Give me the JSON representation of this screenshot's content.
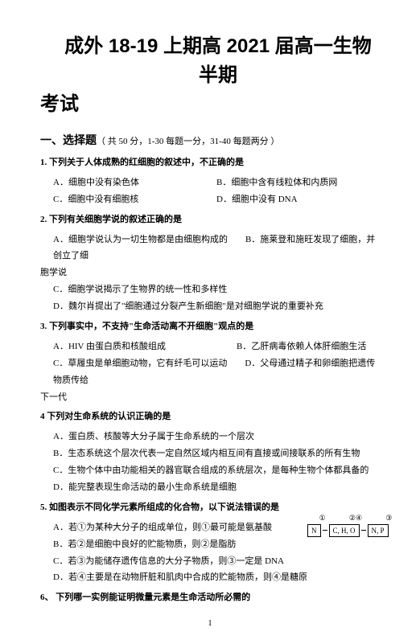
{
  "title": {
    "line1": "成外 18-19 上期高 2021 届高一生物半期",
    "line2": "考试"
  },
  "section": {
    "name": "一、选择题",
    "note": "（ 共 50 分，1-30 每题一分，31-40 每题两分 ）"
  },
  "questions": [
    {
      "num": "1.",
      "text": "下列关于人体成熟的红细胞的叙述中，不正确的是",
      "layout": "two-col",
      "options": [
        {
          "label": "A．",
          "text": "细胞中没有染色体"
        },
        {
          "label": "B．",
          "text": "细胞中含有线粒体和内质网"
        },
        {
          "label": "C．",
          "text": "细胞中没有细胞核"
        },
        {
          "label": "D．",
          "text": "细胞中没有 DNA"
        }
      ]
    },
    {
      "num": "2.",
      "text": "下列有关细胞学说的叙述正确的是",
      "layout": "one-col",
      "options": [
        {
          "label": "A．",
          "text": "细胞学说认为一切生物都是由细胞构成的　　B．施莱登和施旺发现了细胞，并创立了细"
        },
        {
          "label": "",
          "text": "胞学说",
          "outdent": true
        },
        {
          "label": "C．",
          "text": "细胞学说揭示了生物界的统一性和多样性"
        },
        {
          "label": "D．",
          "text": "魏尔肖提出了\"细胞通过分裂产生新细胞\"是对细胞学说的重要补充"
        }
      ]
    },
    {
      "num": "3.",
      "text": "下列事实中，不支持\"生命活动离不开细胞\"观点的是",
      "layout": "one-col",
      "options": [
        {
          "label": "A．",
          "text": "HIV 由蛋白质和核酸组成　　　　　　　　B．乙肝病毒依赖人体肝细胞生活"
        },
        {
          "label": "C．",
          "text": "草履虫是单细胞动物，它有纤毛可以运动　　D．父母通过精子和卵细胞把遗传物质传给"
        },
        {
          "label": "",
          "text": "下一代",
          "outdent": true
        }
      ]
    },
    {
      "num": "4",
      "text": "下列对生命系统的认识正确的是",
      "layout": "one-col",
      "options": [
        {
          "label": "A．",
          "text": "蛋白质、核酸等大分子属于生命系统的一个层次"
        },
        {
          "label": "B．",
          "text": "生态系统这个层次代表一定自然区域内相互间有直接或间接联系的所有生物"
        },
        {
          "label": "C．",
          "text": "生物个体中由功能相关的器官联合组成的系统层次，是每种生物个体都具备的"
        },
        {
          "label": "D．",
          "text": "能完整表现生命活动的最小生命系统是细胞"
        }
      ]
    },
    {
      "num": "5.",
      "text": "如图表示不同化学元素所组成的化合物，以下说法错误的是",
      "layout": "one-col",
      "has_diagram": true,
      "options": [
        {
          "label": "A．",
          "text": "若①为某种大分子的组成单位，则①最可能是氨基酸"
        },
        {
          "label": "B．",
          "text": "若②是细胞中良好的贮能物质，则②是脂肪"
        },
        {
          "label": "C．",
          "text": "若③为能储存遗传信息的大分子物质，则③一定是 DNA"
        },
        {
          "label": "D．",
          "text": "若④主要是在动物肝脏和肌肉中合成的贮能物质，则④是糖原"
        }
      ]
    },
    {
      "num": "6、",
      "text": "下列哪一实例能证明微量元素是生命活动所必需的",
      "layout": "none",
      "options": []
    }
  ],
  "diagram": {
    "labels": [
      "①",
      "②④",
      "③"
    ],
    "boxes": [
      "N",
      "C, H, O",
      "N, P"
    ]
  },
  "page_number": "1"
}
